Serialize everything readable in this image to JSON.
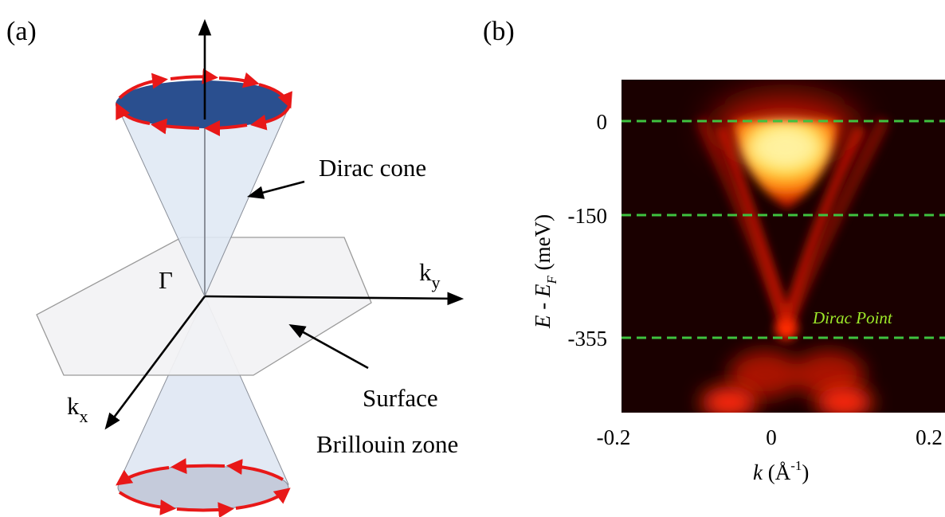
{
  "panel_a": {
    "label": "(a)",
    "dirac_cone_label": "Dirac cone",
    "gamma_label": "Γ",
    "ky_main": "k",
    "ky_sub": "y",
    "kx_main": "k",
    "kx_sub": "x",
    "surface_label_line1": "Surface",
    "surface_label_line2": "Brillouin zone",
    "colors": {
      "top_disk": "#2a4f8f",
      "cone_fill": "#dfe8f4",
      "plane_fill": "#f2f2f4",
      "spin_arrows": "#e81818",
      "bottom_disk": "#c5cbdb"
    }
  },
  "panel_b": {
    "label": "(b)",
    "y_axis_label": "E - E_F  (meV)",
    "y_label_E": "E",
    "y_label_dash": " - ",
    "y_label_E2": "E",
    "y_label_F": "F",
    "y_label_unit": "  (meV)",
    "x_label_k": "k",
    "x_label_unit": "  (Å",
    "x_label_exp": "-1",
    "x_label_close": ")",
    "x_ticks": [
      "-0.2",
      "0",
      "0.2"
    ],
    "y_ticks": [
      "0",
      "-150",
      "-355"
    ],
    "annotation": "Dirac Point",
    "colors": {
      "background": "#1a0000",
      "dashed_lines": "#3fc23f",
      "annotation": "#9eea2a"
    }
  },
  "chart_data": {
    "type": "heatmap",
    "x_range": [
      -0.2,
      0.2
    ],
    "y_ticks_meV": [
      0,
      -150,
      -355
    ],
    "dashed_lines_meV": [
      0,
      -150,
      -355
    ],
    "dirac_point": {
      "k": 0.02,
      "E_meV": -355
    },
    "annotations": [
      "Dirac Point"
    ]
  }
}
